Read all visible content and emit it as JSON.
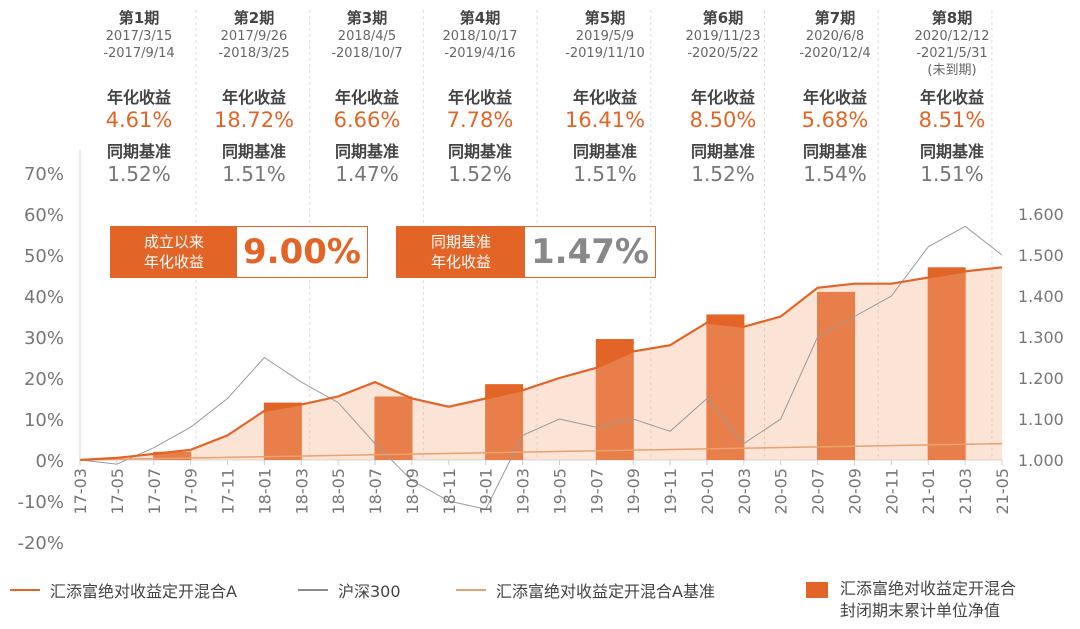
{
  "periods": [
    {
      "name": "第1期",
      "date1": "2017/3/15",
      "date2": "-2017/9/14",
      "note": "",
      "ret_label": "年化收益",
      "ret": "4.61%",
      "bm_label": "同期基准",
      "bm": "1.52%"
    },
    {
      "name": "第2期",
      "date1": "2017/9/26",
      "date2": "-2018/3/25",
      "note": "",
      "ret_label": "年化收益",
      "ret": "18.72%",
      "bm_label": "同期基准",
      "bm": "1.51%"
    },
    {
      "name": "第3期",
      "date1": "2018/4/5",
      "date2": "-2018/10/7",
      "note": "",
      "ret_label": "年化收益",
      "ret": "6.66%",
      "bm_label": "同期基准",
      "bm": "1.47%"
    },
    {
      "name": "第4期",
      "date1": "2018/10/17",
      "date2": "-2019/4/16",
      "note": "",
      "ret_label": "年化收益",
      "ret": "7.78%",
      "bm_label": "同期基准",
      "bm": "1.52%"
    },
    {
      "name": "第5期",
      "date1": "2019/5/9",
      "date2": "-2019/11/10",
      "note": "",
      "ret_label": "年化收益",
      "ret": "16.41%",
      "bm_label": "同期基准",
      "bm": "1.51%"
    },
    {
      "name": "第6期",
      "date1": "2019/11/23",
      "date2": "-2020/5/22",
      "note": "",
      "ret_label": "年化收益",
      "ret": "8.50%",
      "bm_label": "同期基准",
      "bm": "1.52%"
    },
    {
      "name": "第7期",
      "date1": "2020/6/8",
      "date2": "-2020/12/4",
      "note": "",
      "ret_label": "年化收益",
      "ret": "5.68%",
      "bm_label": "同期基准",
      "bm": "1.54%"
    },
    {
      "name": "第8期",
      "date1": "2020/12/12",
      "date2": "-2021/5/31",
      "note": "(未到期)",
      "ret_label": "年化收益",
      "ret": "8.51%",
      "bm_label": "同期基准",
      "bm": "1.51%"
    }
  ],
  "badges": {
    "fund": {
      "label_line1": "成立以来",
      "label_line2": "年化收益",
      "value": "9.00%"
    },
    "bench": {
      "label_line1": "同期基准",
      "label_line2": "年化收益",
      "value": "1.47%"
    }
  },
  "legend": [
    {
      "label": "汇添富绝对收益定开混合A",
      "color": "#e26527",
      "kind": "line"
    },
    {
      "label": "沪深300",
      "color": "#8c8c8c",
      "kind": "line"
    },
    {
      "label": "汇添富绝对收益定开混合A基准",
      "color": "#e8a26e",
      "kind": "line"
    },
    {
      "label": "汇添富绝对收益定开混合",
      "label2": "封闭期末累计单位净值",
      "color": "#e26527",
      "kind": "bar"
    }
  ],
  "colors": {
    "accent": "#e26527",
    "grey": "#8c8c8c",
    "benchmark": "#e8a26e",
    "axis_text": "#777777",
    "grid": "#e8e8e8"
  },
  "chart_data": {
    "type": "line",
    "x_ticks": [
      "17-03",
      "17-05",
      "17-07",
      "17-09",
      "17-11",
      "18-01",
      "18-03",
      "18-05",
      "18-07",
      "18-09",
      "18-11",
      "19-01",
      "19-03",
      "19-05",
      "19-07",
      "19-09",
      "19-11",
      "20-01",
      "20-03",
      "20-05",
      "20-07",
      "20-09",
      "20-11",
      "21-01",
      "21-03",
      "21-05"
    ],
    "y_left": {
      "ticks": [
        "-20%",
        "-10%",
        "0%",
        "10%",
        "20%",
        "30%",
        "40%",
        "50%",
        "60%",
        "70%"
      ],
      "range": [
        -20,
        70
      ]
    },
    "y_right": {
      "ticks": [
        "1.000",
        "1.100",
        "1.200",
        "1.300",
        "1.400",
        "1.500",
        "1.600"
      ],
      "range": [
        1.0,
        1.6
      ]
    },
    "series": [
      {
        "name": "汇添富绝对收益定开混合A",
        "axis": "left",
        "x": [
          "17-03",
          "17-05",
          "17-07",
          "17-09",
          "17-11",
          "18-01",
          "18-03",
          "18-05",
          "18-07",
          "18-09",
          "18-11",
          "19-01",
          "19-03",
          "19-05",
          "19-07",
          "19-09",
          "19-11",
          "20-01",
          "20-03",
          "20-05",
          "20-07",
          "20-09",
          "20-11",
          "21-01",
          "21-03",
          "21-05"
        ],
        "values": [
          0,
          0.5,
          1.5,
          2.5,
          6,
          12,
          13.5,
          15.5,
          19,
          15,
          13,
          15,
          17,
          20,
          22.5,
          26.5,
          28,
          33.5,
          32.5,
          35,
          42,
          43,
          43,
          44.5,
          46,
          47
        ]
      },
      {
        "name": "沪深300",
        "axis": "left",
        "x": [
          "17-03",
          "17-05",
          "17-07",
          "17-09",
          "17-11",
          "18-01",
          "18-03",
          "18-05",
          "18-07",
          "18-09",
          "18-11",
          "19-01",
          "19-03",
          "19-05",
          "19-07",
          "19-09",
          "19-11",
          "20-01",
          "20-03",
          "20-05",
          "20-07",
          "20-09",
          "20-11",
          "21-01",
          "21-03",
          "21-05"
        ],
        "values": [
          0,
          -1,
          3,
          8,
          15,
          25,
          19,
          14,
          4,
          -5,
          -10,
          -12,
          6,
          10,
          8,
          10,
          7,
          15,
          4,
          10,
          30,
          35,
          40,
          52,
          57,
          50
        ]
      },
      {
        "name": "汇添富绝对收益定开混合A基准",
        "axis": "left",
        "x": [
          "17-03",
          "21-05"
        ],
        "values": [
          0,
          4
        ]
      }
    ],
    "bars": {
      "name": "汇添富绝对收益定开混合 封闭期末累计单位净值",
      "axis": "right",
      "x": [
        "17-08",
        "18-02",
        "18-08",
        "19-02",
        "19-08",
        "20-02",
        "20-08",
        "21-02"
      ],
      "values": [
        1.02,
        1.14,
        1.155,
        1.185,
        1.295,
        1.355,
        1.41,
        1.47
      ]
    }
  }
}
